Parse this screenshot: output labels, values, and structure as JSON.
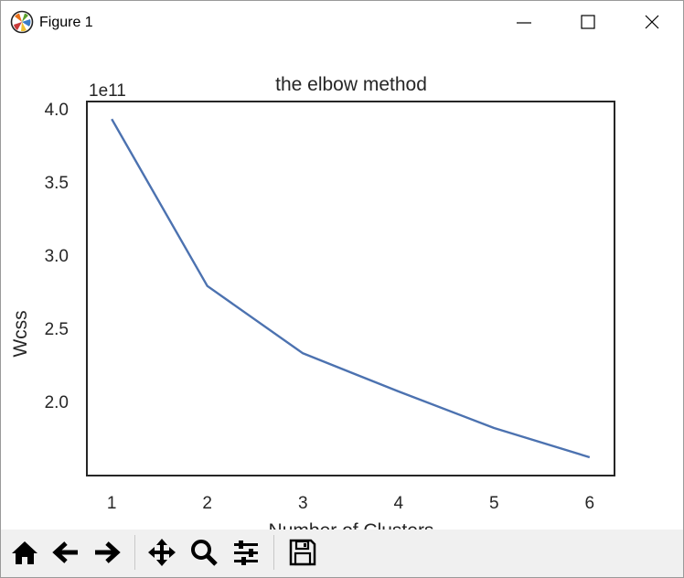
{
  "window": {
    "title": "Figure 1"
  },
  "chart_data": {
    "type": "line",
    "title": "the elbow method",
    "xlabel": "Number of Clusters",
    "ylabel": "Wcss",
    "offset_text": "1e11",
    "x": [
      1,
      2,
      3,
      4,
      5,
      6
    ],
    "y": [
      393000000000.0,
      279000000000.0,
      233000000000.0,
      207000000000.0,
      182000000000.0,
      162000000000.0
    ],
    "xlim": [
      0.74,
      6.26
    ],
    "ylim": [
      149500000000.0,
      405000000000.0
    ],
    "xticks": [
      "1",
      "2",
      "3",
      "4",
      "5",
      "6"
    ],
    "yticks": [
      "2.0",
      "2.5",
      "3.0",
      "3.5",
      "4.0"
    ],
    "ytick_values": [
      200000000000.0,
      250000000000.0,
      300000000000.0,
      350000000000.0,
      400000000000.0
    ],
    "grid": false,
    "line_color": "#4c72b0"
  },
  "toolbar": {
    "buttons": [
      "home-icon",
      "back-arrow-icon",
      "forward-arrow-icon",
      "pan-icon",
      "zoom-icon",
      "configure-subplots-icon",
      "save-icon"
    ]
  }
}
